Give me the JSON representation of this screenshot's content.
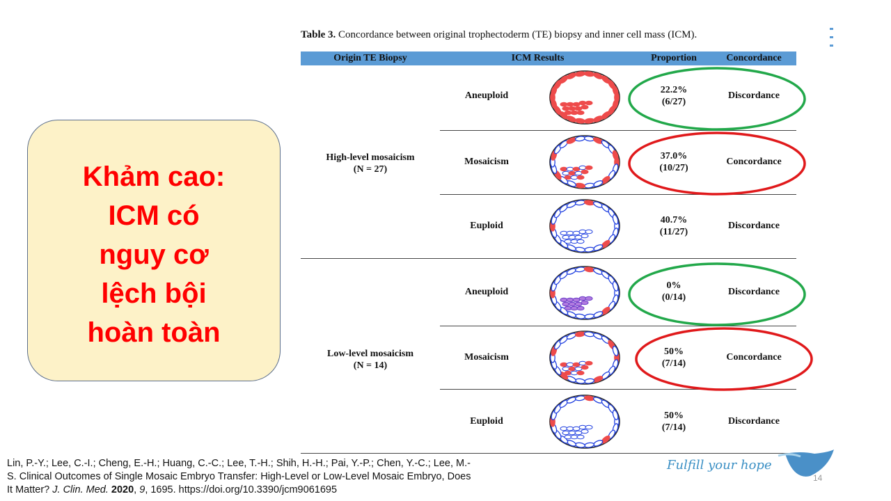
{
  "table": {
    "caption_bold": "Table 3.",
    "caption_rest": " Concordance between original trophectoderm (TE) biopsy and inner cell mass (ICM).",
    "headers": [
      "Origin TE Biopsy",
      "ICM Results",
      "Proportion",
      "Concordance"
    ],
    "groups": [
      {
        "label": "High-level mosaicism",
        "n": "(N = 27)",
        "rows": [
          {
            "icm": "Aneuploid",
            "pct": "22.2%",
            "count": "(6/27)",
            "concordance": "Discordance",
            "ring": "green"
          },
          {
            "icm": "Mosaicism",
            "pct": "37.0%",
            "count": "(10/27)",
            "concordance": "Concordance",
            "ring": "red"
          },
          {
            "icm": "Euploid",
            "pct": "40.7%",
            "count": "(11/27)",
            "concordance": "Discordance",
            "ring": ""
          }
        ]
      },
      {
        "label": "Low-level mosaicism",
        "n": "(N = 14)",
        "rows": [
          {
            "icm": "Aneuploid",
            "pct": "0%",
            "count": "(0/14)",
            "concordance": "Discordance",
            "ring": "green"
          },
          {
            "icm": "Mosaicism",
            "pct": "50%",
            "count": "(7/14)",
            "concordance": "Concordance",
            "ring": "red"
          },
          {
            "icm": "Euploid",
            "pct": "50%",
            "count": "(7/14)",
            "concordance": "Discordance",
            "ring": ""
          }
        ]
      }
    ]
  },
  "callout": {
    "lines": [
      "Khảm cao:",
      "ICM có",
      "nguy cơ",
      "lệch bội",
      "hoàn toàn"
    ]
  },
  "citation": {
    "line1": "Lin, P.-Y.; Lee, C.-I.; Cheng, E.-H.; Huang, C.-C.; Lee, T.-H.; Shih, H.-H.; Pai, Y.-P.; Chen, Y.-C.; Lee, M.-",
    "line2": "S. Clinical Outcomes of Single Mosaic Embryo Transfer: High-Level or Low-Level Mosaic Embryo, Does",
    "line3_a": "It Matter? ",
    "journal": "J. Clin. Med.",
    "year": "2020",
    "volume": "9",
    "rest": ", 1695. https://doi.org/10.3390/jcm9061695"
  },
  "slogan": "Fulfill your hope",
  "page_number": "14",
  "colors": {
    "header_bar": "#5b9bd5",
    "ring_green": "#22a84a",
    "ring_red": "#e0191b",
    "callout_bg": "#fdf2c8",
    "callout_text": "#ff0000",
    "cell_red": "#ee4b4b",
    "cell_blue": "#1f3fe0"
  }
}
